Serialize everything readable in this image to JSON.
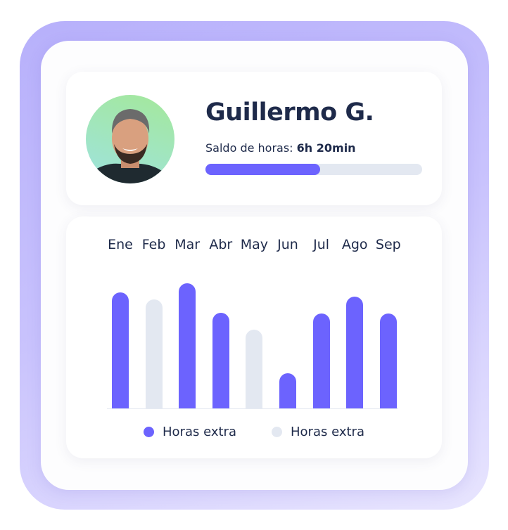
{
  "profile": {
    "name": "Guillermo G.",
    "balance_label": "Saldo de horas:",
    "balance_value": "6h 20min",
    "progress_percent": 53
  },
  "colors": {
    "accent": "#6c63fe",
    "muted": "#e3e8f1"
  },
  "chart_data": {
    "type": "bar",
    "categories": [
      "Ene",
      "Feb",
      "Mar",
      "Abr",
      "May",
      "Jun",
      "Jul",
      "Ago",
      "Sep"
    ],
    "values": [
      165,
      155,
      178,
      136,
      112,
      50,
      135,
      159,
      135
    ],
    "highlight": [
      true,
      false,
      true,
      true,
      false,
      true,
      true,
      true,
      true
    ],
    "legend": [
      {
        "label": "Horas extra",
        "color": "#6c63fe"
      },
      {
        "label": "Horas extra",
        "color": "#e3e8f1"
      }
    ],
    "legend_position": "bottom",
    "grid": false
  }
}
